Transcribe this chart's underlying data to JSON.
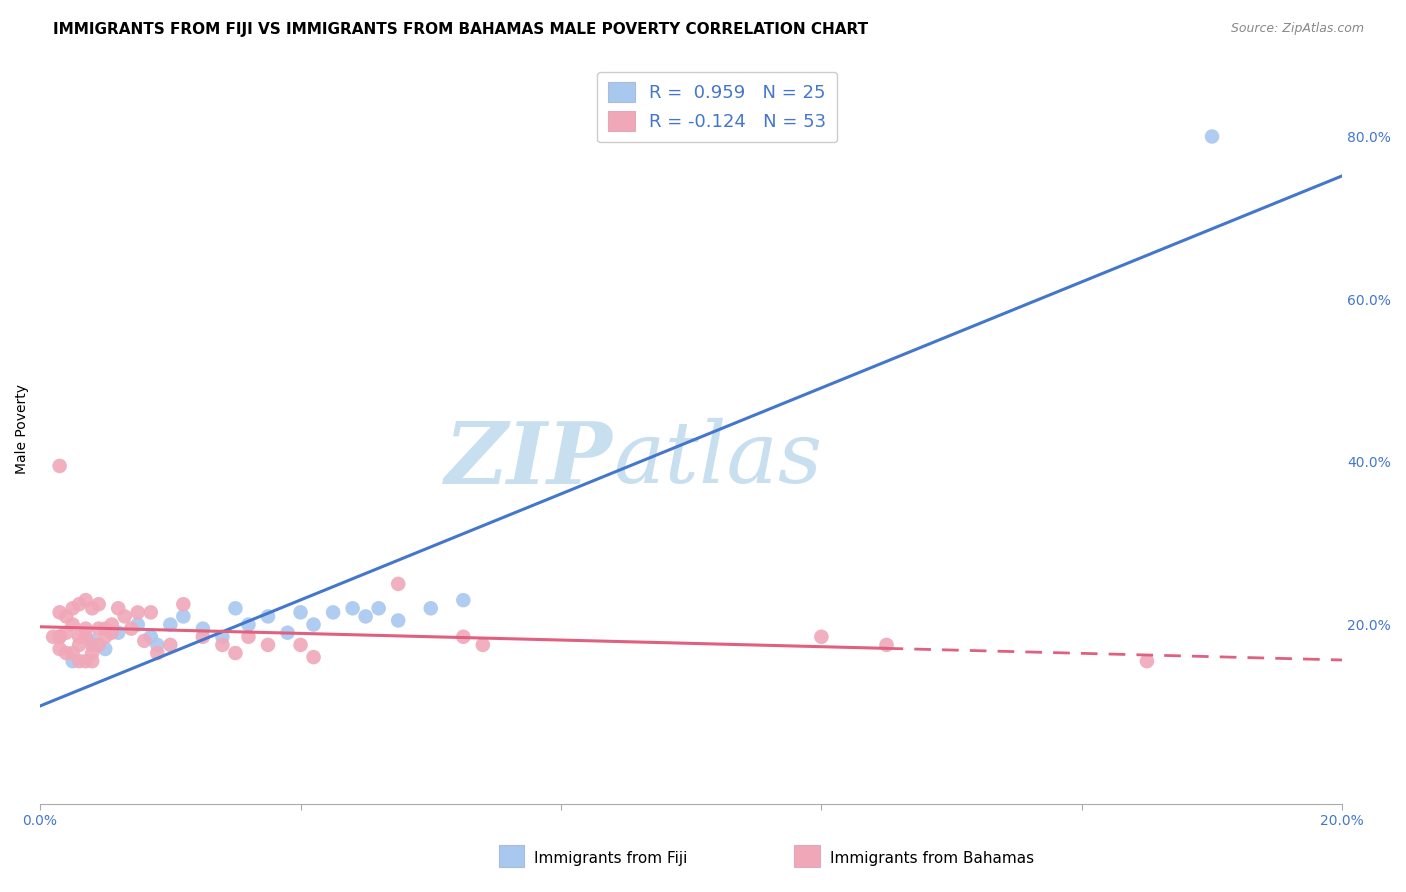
{
  "title": "IMMIGRANTS FROM FIJI VS IMMIGRANTS FROM BAHAMAS MALE POVERTY CORRELATION CHART",
  "source": "Source: ZipAtlas.com",
  "ylabel": "Male Poverty",
  "xlim": [
    0.0,
    0.2
  ],
  "ylim": [
    -0.02,
    0.9
  ],
  "legend_r1": "R =  0.959   N = 25",
  "legend_r2": "R = -0.124   N = 53",
  "fiji_color": "#a8c8f0",
  "bahamas_color": "#f0a8b8",
  "fiji_line_color": "#4477cc",
  "bahamas_line_color": "#e06080",
  "fiji_scatter": [
    [
      0.005,
      0.155
    ],
    [
      0.008,
      0.18
    ],
    [
      0.01,
      0.17
    ],
    [
      0.012,
      0.19
    ],
    [
      0.015,
      0.2
    ],
    [
      0.017,
      0.185
    ],
    [
      0.018,
      0.175
    ],
    [
      0.02,
      0.2
    ],
    [
      0.022,
      0.21
    ],
    [
      0.025,
      0.195
    ],
    [
      0.028,
      0.185
    ],
    [
      0.03,
      0.22
    ],
    [
      0.032,
      0.2
    ],
    [
      0.035,
      0.21
    ],
    [
      0.038,
      0.19
    ],
    [
      0.04,
      0.215
    ],
    [
      0.042,
      0.2
    ],
    [
      0.045,
      0.215
    ],
    [
      0.048,
      0.22
    ],
    [
      0.05,
      0.21
    ],
    [
      0.052,
      0.22
    ],
    [
      0.055,
      0.205
    ],
    [
      0.06,
      0.22
    ],
    [
      0.065,
      0.23
    ],
    [
      0.18,
      0.8
    ]
  ],
  "bahamas_scatter": [
    [
      0.002,
      0.185
    ],
    [
      0.003,
      0.185
    ],
    [
      0.004,
      0.19
    ],
    [
      0.005,
      0.2
    ],
    [
      0.006,
      0.185
    ],
    [
      0.006,
      0.175
    ],
    [
      0.007,
      0.195
    ],
    [
      0.007,
      0.185
    ],
    [
      0.008,
      0.175
    ],
    [
      0.008,
      0.165
    ],
    [
      0.009,
      0.195
    ],
    [
      0.009,
      0.175
    ],
    [
      0.01,
      0.195
    ],
    [
      0.01,
      0.185
    ],
    [
      0.011,
      0.2
    ],
    [
      0.011,
      0.19
    ],
    [
      0.012,
      0.22
    ],
    [
      0.013,
      0.21
    ],
    [
      0.014,
      0.195
    ],
    [
      0.015,
      0.215
    ],
    [
      0.016,
      0.18
    ],
    [
      0.017,
      0.215
    ],
    [
      0.018,
      0.165
    ],
    [
      0.02,
      0.175
    ],
    [
      0.022,
      0.225
    ],
    [
      0.025,
      0.185
    ],
    [
      0.028,
      0.175
    ],
    [
      0.03,
      0.165
    ],
    [
      0.032,
      0.185
    ],
    [
      0.035,
      0.175
    ],
    [
      0.04,
      0.175
    ],
    [
      0.042,
      0.16
    ],
    [
      0.005,
      0.22
    ],
    [
      0.006,
      0.225
    ],
    [
      0.007,
      0.23
    ],
    [
      0.008,
      0.22
    ],
    [
      0.009,
      0.225
    ],
    [
      0.003,
      0.215
    ],
    [
      0.004,
      0.21
    ],
    [
      0.003,
      0.185
    ],
    [
      0.003,
      0.17
    ],
    [
      0.004,
      0.165
    ],
    [
      0.005,
      0.165
    ],
    [
      0.006,
      0.155
    ],
    [
      0.007,
      0.155
    ],
    [
      0.008,
      0.155
    ],
    [
      0.003,
      0.395
    ],
    [
      0.055,
      0.25
    ],
    [
      0.065,
      0.185
    ],
    [
      0.068,
      0.175
    ],
    [
      0.12,
      0.185
    ],
    [
      0.13,
      0.175
    ],
    [
      0.17,
      0.155
    ]
  ],
  "background_color": "#ffffff",
  "grid_color": "#dddddd",
  "watermark_zip": "ZIP",
  "watermark_atlas": "atlas",
  "watermark_color": "#c8dff0"
}
